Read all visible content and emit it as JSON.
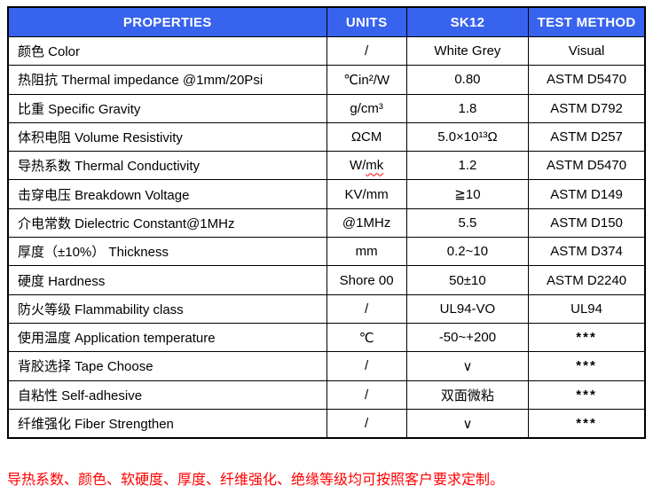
{
  "header": {
    "columns": [
      "PROPERTIES",
      "UNITS",
      "SK12",
      "TEST METHOD"
    ]
  },
  "rows": [
    {
      "property": "颜色 Color",
      "units": "/",
      "sk12": "White Grey",
      "method": "Visual"
    },
    {
      "property": "热阻抗 Thermal impedance @1mm/20Psi",
      "units": "℃in²/W",
      "sk12": "0.80",
      "method": "ASTM D5470"
    },
    {
      "property": "比重 Specific Gravity",
      "units": "g/cm³",
      "sk12": "1.8",
      "method": "ASTM D792"
    },
    {
      "property": "体积电阻 Volume Resistivity",
      "units": "ΩCM",
      "sk12": "5.0×10¹³Ω",
      "method": "ASTM D257"
    },
    {
      "property": "导热系数 Thermal Conductivity",
      "units": "W/mk",
      "units_wavy": "mk",
      "sk12": "1.2",
      "method": "ASTM D5470"
    },
    {
      "property": "击穿电压 Breakdown Voltage",
      "units": "KV/mm",
      "sk12": "≧10",
      "method": "ASTM D149"
    },
    {
      "property": "介电常数 Dielectric Constant@1MHz",
      "units": "@1MHz",
      "sk12": "5.5",
      "method": "ASTM D150"
    },
    {
      "property": "厚度（±10%） Thickness",
      "units": "mm",
      "sk12": "0.2~10",
      "method": "ASTM D374"
    },
    {
      "property": "硬度 Hardness",
      "units": "Shore 00",
      "sk12": "50±10",
      "method": "ASTM D2240"
    },
    {
      "property": "防火等级 Flammability class",
      "units": "/",
      "sk12": "UL94-VO",
      "method": "UL94"
    },
    {
      "property": "使用温度 Application temperature",
      "units": "℃",
      "sk12": "-50~+200",
      "method": "***"
    },
    {
      "property": "背胶选择 Tape Choose",
      "units": "/",
      "sk12": "∨",
      "method": "***"
    },
    {
      "property": "自粘性 Self-adhesive",
      "units": "/",
      "sk12": "双面微粘",
      "method": "***"
    },
    {
      "property": "纤维强化 Fiber Strengthen",
      "units": "/",
      "sk12": "∨",
      "method": "***"
    }
  ],
  "footnote": "导热系数、颜色、软硬度、厚度、纤维强化、绝缘等级均可按照客户要求定制。",
  "colors": {
    "header_bg": "#3863ef",
    "header_text": "#ffffff",
    "border": "#000000",
    "note_red": "#ff0000"
  }
}
